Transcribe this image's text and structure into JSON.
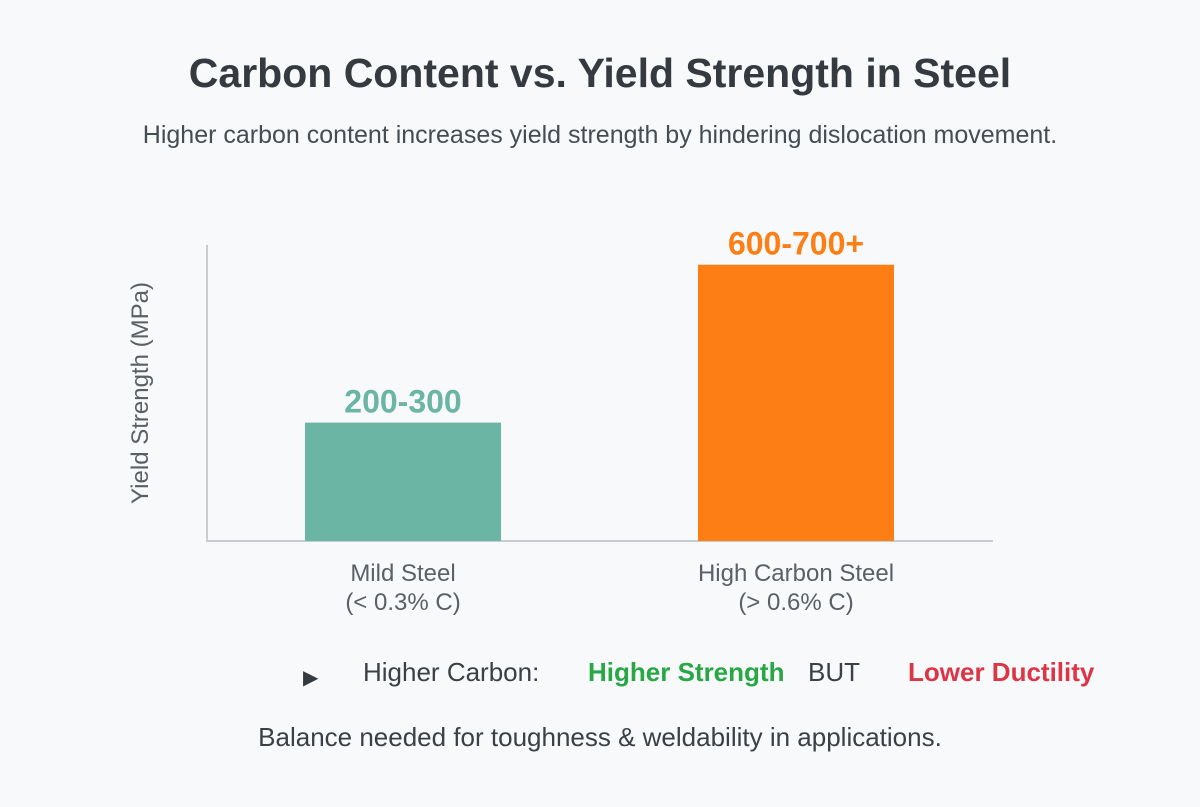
{
  "header": {
    "title": "Carbon Content vs. Yield Strength in Steel",
    "subtitle": "Higher carbon content increases yield strength by hindering dislocation movement."
  },
  "chart_data": {
    "type": "bar",
    "ylabel": "Yield Strength (MPa)",
    "categories": [
      {
        "line1": "Mild Steel",
        "line2": "(< 0.3% C)"
      },
      {
        "line1": "High Carbon Steel",
        "line2": "(> 0.6% C)"
      }
    ],
    "values": [
      300,
      700
    ],
    "value_labels": [
      "200-300",
      "600-700+"
    ],
    "colors": [
      "#6ab5a4",
      "#fd7e14"
    ],
    "ylim": [
      0,
      750
    ],
    "grid": false,
    "legend": "none"
  },
  "footnote": {
    "arrow_icon": "▶",
    "prefix": "Higher Carbon:",
    "strength": "Higher Strength",
    "but": "BUT",
    "ductility": "Lower Ductility"
  },
  "conclusion": "Balance needed for toughness & weldability in applications."
}
